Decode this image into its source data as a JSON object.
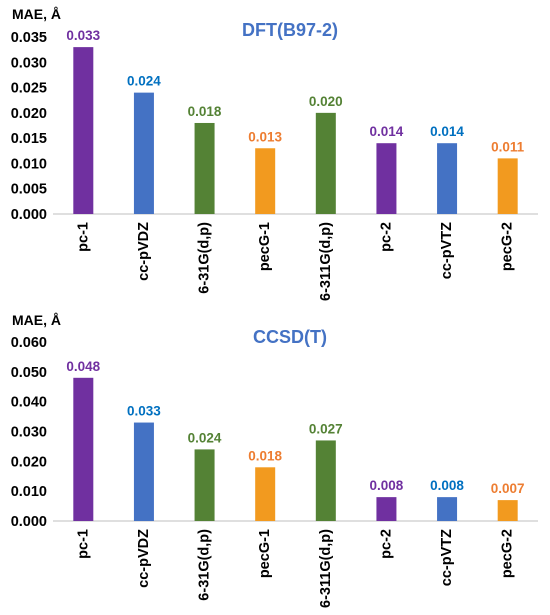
{
  "chart_data": [
    {
      "type": "bar",
      "title": "DFT(B97-2)",
      "ylabel": "MAE, Å",
      "xlabel": "",
      "categories": [
        "pc-1",
        "cc-pVDZ",
        "6-31G(d,p)",
        "pecG-1",
        "6-311G(d,p)",
        "pc-2",
        "cc-pVTZ",
        "pecG-2"
      ],
      "values": [
        0.033,
        0.024,
        0.018,
        0.013,
        0.02,
        0.014,
        0.014,
        0.011
      ],
      "data_labels": [
        "0.033",
        "0.024",
        "0.018",
        "0.013",
        "0.020",
        "0.014",
        "0.014",
        "0.011"
      ],
      "yticks": [
        "0.000",
        "0.005",
        "0.010",
        "0.015",
        "0.020",
        "0.025",
        "0.030",
        "0.035"
      ],
      "ylim": [
        0,
        0.035
      ],
      "grid": false,
      "bar_colors": [
        "#7030A0",
        "#4472C4",
        "#548235",
        "#F29A1F",
        "#548235",
        "#7030A0",
        "#4472C4",
        "#F29A1F"
      ],
      "label_colors": [
        "#7030A0",
        "#0070C0",
        "#548235",
        "#ED7D31",
        "#548235",
        "#7030A0",
        "#0070C0",
        "#ED7D31"
      ],
      "title_color": "#4472C4"
    },
    {
      "type": "bar",
      "title": "CCSD(T)",
      "ylabel": "MAE, Å",
      "xlabel": "",
      "categories": [
        "pc-1",
        "cc-pVDZ",
        "6-31G(d,p)",
        "pecG-1",
        "6-311G(d,p)",
        "pc-2",
        "cc-pVTZ",
        "pecG-2"
      ],
      "values": [
        0.048,
        0.033,
        0.024,
        0.018,
        0.027,
        0.008,
        0.008,
        0.007
      ],
      "data_labels": [
        "0.048",
        "0.033",
        "0.024",
        "0.018",
        "0.027",
        "0.008",
        "0.008",
        "0.007"
      ],
      "yticks": [
        "0.000",
        "0.010",
        "0.020",
        "0.030",
        "0.040",
        "0.050",
        "0.060"
      ],
      "ylim": [
        0,
        0.06
      ],
      "grid": false,
      "bar_colors": [
        "#7030A0",
        "#4472C4",
        "#548235",
        "#F29A1F",
        "#548235",
        "#7030A0",
        "#4472C4",
        "#F29A1F"
      ],
      "label_colors": [
        "#7030A0",
        "#0070C0",
        "#548235",
        "#ED7D31",
        "#548235",
        "#7030A0",
        "#0070C0",
        "#ED7D31"
      ],
      "title_color": "#4472C4"
    }
  ]
}
